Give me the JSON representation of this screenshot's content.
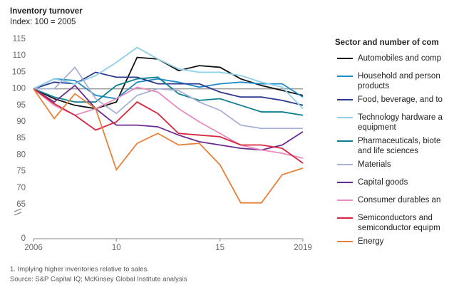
{
  "chart_data": {
    "type": "line",
    "title": "Inventory turnover",
    "subtitle": "Index: 100 = 2005",
    "legend_title": "Sector and number of com",
    "x": [
      2006,
      2007,
      2008,
      2009,
      2010,
      2011,
      2012,
      2013,
      2014,
      2015,
      2016,
      2017,
      2018,
      2019
    ],
    "xlim": [
      2006,
      2019
    ],
    "xticks": [
      2006,
      {
        "value": 2010,
        "label": "10"
      },
      {
        "value": 2015,
        "label": "15"
      },
      2019
    ],
    "ylim": [
      65,
      115
    ],
    "yticks": [
      65,
      70,
      75,
      80,
      85,
      90,
      95,
      100,
      105,
      110,
      115
    ],
    "ybreak_ticks": [
      0
    ],
    "reference_line": 100,
    "series": [
      {
        "name": "Automobiles and comp",
        "color": "#111111",
        "values": [
          100,
          97,
          95,
          94,
          96,
          109.5,
          109,
          105.5,
          107,
          106.5,
          103,
          101,
          99.5,
          98
        ]
      },
      {
        "name": "Household and person\nproducts",
        "color": "#1f8dc7",
        "values": [
          100,
          103,
          102.5,
          98,
          97,
          102,
          103,
          102,
          100.5,
          101.5,
          102,
          101.5,
          101.5,
          97.5
        ]
      },
      {
        "name": "Food, beverage, and to",
        "color": "#2b3a8c",
        "values": [
          100,
          102,
          101.5,
          105,
          103.5,
          103.5,
          101.5,
          101.5,
          101.5,
          99,
          97.5,
          97.5,
          96.5,
          95
        ]
      },
      {
        "name": "Technology hardware a\nequipment",
        "color": "#8fd0e8",
        "values": [
          100,
          103,
          101.5,
          104,
          108,
          112.5,
          109,
          106,
          105,
          105,
          104,
          102,
          100.5,
          94
        ]
      },
      {
        "name": "Pharmaceuticals, biote\nand life sciences",
        "color": "#0d7f8f",
        "values": [
          100,
          97.5,
          96,
          96,
          101,
          103,
          103.5,
          98.5,
          96.5,
          97,
          95,
          93,
          93,
          92
        ]
      },
      {
        "name": "Materials",
        "color": "#a9b0d6",
        "values": [
          100,
          100,
          106.5,
          97,
          92.5,
          98,
          100,
          99.5,
          96,
          93.5,
          89,
          88,
          88,
          88
        ]
      },
      {
        "name": "Capital goods",
        "color": "#6a2c91",
        "values": [
          100,
          96,
          101,
          94,
          89,
          89,
          88.5,
          86,
          84,
          83,
          82,
          81.5,
          83,
          87
        ]
      },
      {
        "name": "Consumer durables an",
        "color": "#e88cc0",
        "values": [
          100,
          95,
          92,
          94,
          97,
          100.5,
          99,
          94,
          90,
          86.5,
          83,
          81.5,
          80.5,
          79
        ]
      },
      {
        "name": "Semiconductors and\nsemiconductor equipm",
        "color": "#d7263d",
        "values": [
          100,
          95.5,
          92,
          87.5,
          90,
          96,
          92.5,
          86.5,
          86,
          85.5,
          83,
          83,
          82,
          77.5
        ]
      },
      {
        "name": "Energy",
        "color": "#e8803a",
        "values": [
          100,
          91,
          98.5,
          94,
          75.5,
          83.5,
          86.5,
          83,
          83.5,
          77,
          65.5,
          65.5,
          74,
          76
        ]
      }
    ],
    "footnotes": [
      "1. Implying higher inventories relative to sales.",
      "Source: S&P Capital IQ; McKinsey Global Institute analysis"
    ]
  }
}
